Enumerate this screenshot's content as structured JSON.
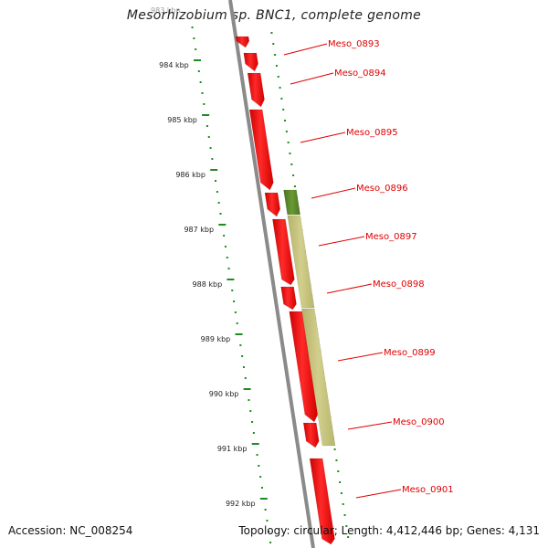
{
  "title": "Mesorhizobium sp. BNC1, complete genome",
  "accession_text": "Accession: NC_008254",
  "stats_text": "Topology: circular; Length: 4,412,446 bp; Genes: 4,131",
  "colors": {
    "gene_red": "#ff0000",
    "gene_olive": "#5e8a2a",
    "gene_khaki": "#c9c67e",
    "backbone": "#888888",
    "tick_green": "#1e8c1e",
    "label_red": "#e00000"
  },
  "scale_labels": [
    "983 kbp",
    "984 kbp",
    "985 kbp",
    "986 kbp",
    "987 kbp",
    "988 kbp",
    "989 kbp",
    "990 kbp",
    "991 kbp",
    "992 kbp"
  ],
  "genes": [
    {
      "name": "Meso_0893"
    },
    {
      "name": "Meso_0894"
    },
    {
      "name": "Meso_0895"
    },
    {
      "name": "Meso_0896"
    },
    {
      "name": "Meso_0897"
    },
    {
      "name": "Meso_0898"
    },
    {
      "name": "Meso_0899"
    },
    {
      "name": "Meso_0900"
    },
    {
      "name": "Meso_0901"
    }
  ]
}
